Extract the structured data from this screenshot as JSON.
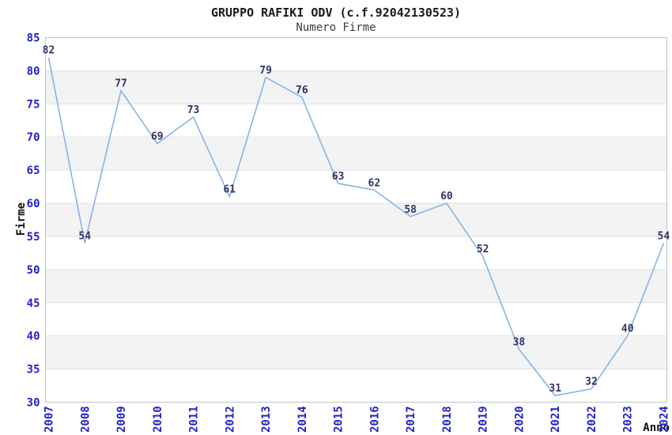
{
  "chart_data": {
    "type": "line",
    "title": "GRUPPO RAFIKI ODV (c.f.92042130523)",
    "subtitle": "Numero Firme",
    "xlabel": "Anno",
    "ylabel": "Firme",
    "categories": [
      "2007",
      "2008",
      "2009",
      "2010",
      "2011",
      "2012",
      "2013",
      "2014",
      "2015",
      "2016",
      "2017",
      "2018",
      "2019",
      "2020",
      "2021",
      "2022",
      "2023",
      "2024"
    ],
    "values": [
      82,
      54,
      77,
      69,
      73,
      61,
      79,
      76,
      63,
      62,
      58,
      60,
      52,
      38,
      31,
      32,
      40,
      54
    ],
    "series_name": "Numero Firme",
    "ylim": [
      30,
      85
    ],
    "ytick_step": 5,
    "yticks": [
      30,
      35,
      40,
      45,
      50,
      55,
      60,
      65,
      70,
      75,
      80,
      85
    ],
    "grid": "horizontal-bands",
    "legend": "none",
    "point_labels_visible": true,
    "colors": {
      "line": "#7eb1e6",
      "tick_label": "#2222cc",
      "point_label": "#333366",
      "band": "#f3f3f3",
      "gridline": "#e2e2e2",
      "border": "#c4c4c4",
      "title": "#1a1a1a",
      "subtitle": "#3c3c3c"
    }
  }
}
